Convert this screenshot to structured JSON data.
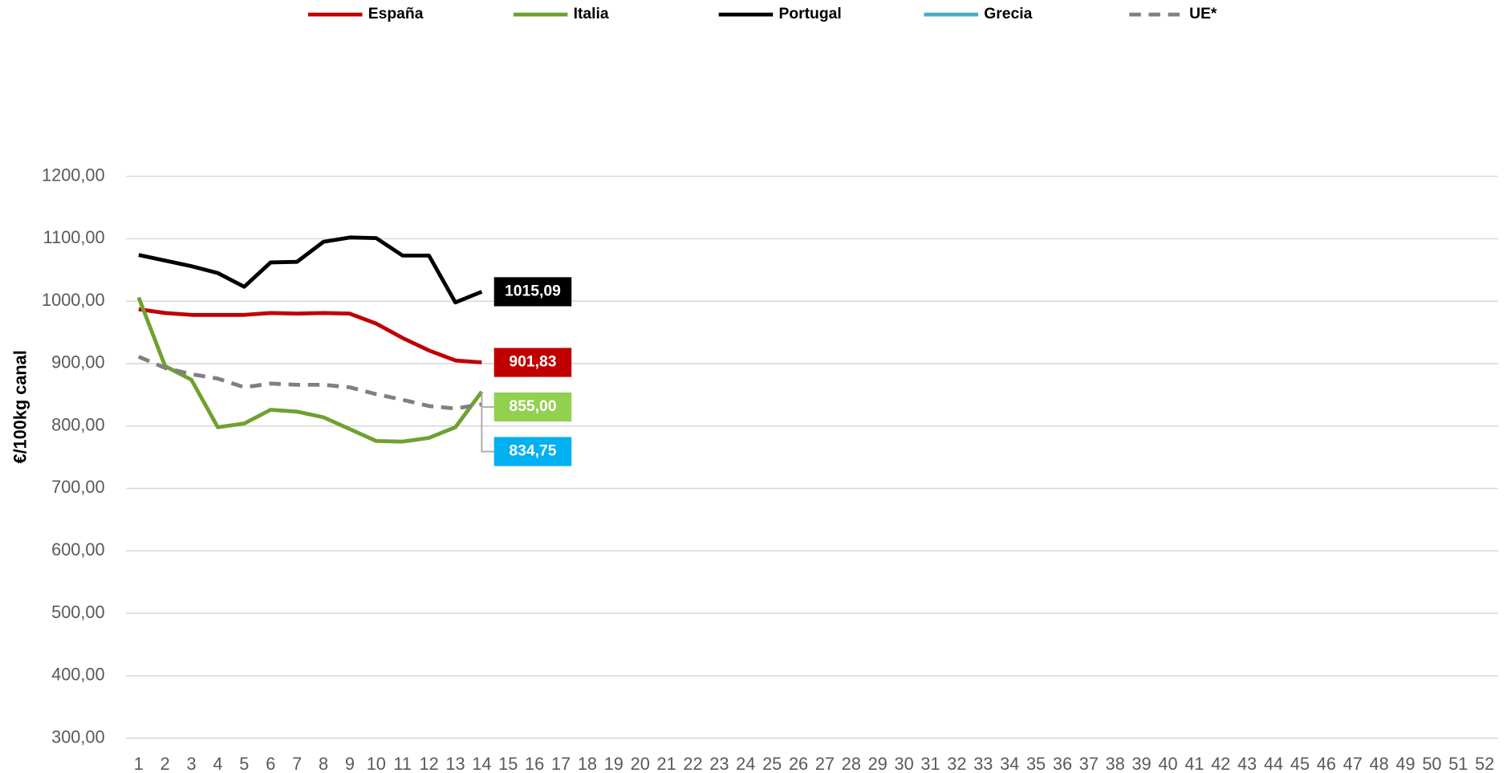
{
  "chart_data": {
    "type": "line",
    "y_label": "€/100kg canal",
    "categories": [
      1,
      2,
      3,
      4,
      5,
      6,
      7,
      8,
      9,
      10,
      11,
      12,
      13,
      14,
      15,
      16,
      17,
      18,
      19,
      20,
      21,
      22,
      23,
      24,
      25,
      26,
      27,
      28,
      29,
      30,
      31,
      32,
      33,
      34,
      35,
      36,
      37,
      38,
      39,
      40,
      41,
      42,
      43,
      44,
      45,
      46,
      47,
      48,
      49,
      50,
      51,
      52
    ],
    "ylim": [
      300,
      1200
    ],
    "yticks": [
      {
        "value": 300,
        "label": "300,00"
      },
      {
        "value": 400,
        "label": "400,00"
      },
      {
        "value": 500,
        "label": "500,00"
      },
      {
        "value": 600,
        "label": "600,00"
      },
      {
        "value": 700,
        "label": "700,00"
      },
      {
        "value": 800,
        "label": "800,00"
      },
      {
        "value": 900,
        "label": "900,00"
      },
      {
        "value": 1000,
        "label": "1000,00"
      },
      {
        "value": 1100,
        "label": "1100,00"
      },
      {
        "value": 1200,
        "label": "1200,00"
      }
    ],
    "grid": true,
    "legend": "top",
    "series": [
      {
        "name": "España",
        "color": "#c00000",
        "label_color": "#c00000",
        "values": [
          987,
          981,
          978,
          978,
          978,
          981,
          980,
          981,
          980,
          964,
          941,
          921,
          905,
          901.83,
          null,
          null,
          null,
          null,
          null,
          null,
          null,
          null,
          null,
          null,
          null,
          null,
          null,
          null,
          null,
          null,
          null,
          null,
          null,
          null,
          null,
          null,
          null,
          null,
          null,
          null,
          null,
          null,
          null,
          null,
          null,
          null,
          null,
          null,
          null,
          null,
          null,
          null
        ],
        "value_labels": [
          null,
          null,
          null,
          null,
          null,
          null,
          null,
          null,
          null,
          null,
          null,
          null,
          null,
          "901,83",
          null,
          null,
          null,
          null,
          null,
          null,
          null,
          null,
          null,
          null,
          null,
          null,
          null,
          null,
          null,
          null,
          null,
          null,
          null,
          null,
          null,
          null,
          null,
          null,
          null,
          null,
          null,
          null,
          null,
          null,
          null,
          null,
          null,
          null,
          null,
          null,
          null,
          null
        ]
      },
      {
        "name": "Italia",
        "color": "#70a030",
        "label_color": "#92d050",
        "values": [
          1006,
          896,
          874,
          798,
          804,
          826,
          823,
          814,
          795,
          776,
          775,
          781,
          798,
          855,
          null,
          null,
          null,
          null,
          null,
          null,
          null,
          null,
          null,
          null,
          null,
          null,
          null,
          null,
          null,
          null,
          null,
          null,
          null,
          null,
          null,
          null,
          null,
          null,
          null,
          null,
          null,
          null,
          null,
          null,
          null,
          null,
          null,
          null,
          null,
          null,
          null,
          null
        ],
        "value_labels": [
          null,
          null,
          null,
          null,
          null,
          null,
          null,
          null,
          null,
          null,
          null,
          null,
          null,
          "855,00",
          null,
          null,
          null,
          null,
          null,
          null,
          null,
          null,
          null,
          null,
          null,
          null,
          null,
          null,
          null,
          null,
          null,
          null,
          null,
          null,
          null,
          null,
          null,
          null,
          null,
          null,
          null,
          null,
          null,
          null,
          null,
          null,
          null,
          null,
          null,
          null,
          null,
          null
        ]
      },
      {
        "name": "Portugal",
        "color": "#000000",
        "label_color": "#000000",
        "values": [
          1074,
          1065,
          1056,
          1045,
          1023,
          1062,
          1063,
          1095,
          1102,
          1101,
          1073,
          1073,
          998,
          1015.09,
          null,
          null,
          null,
          null,
          null,
          null,
          null,
          null,
          null,
          null,
          null,
          null,
          null,
          null,
          null,
          null,
          null,
          null,
          null,
          null,
          null,
          null,
          null,
          null,
          null,
          null,
          null,
          null,
          null,
          null,
          null,
          null,
          null,
          null,
          null,
          null,
          null,
          null
        ],
        "value_labels": [
          null,
          null,
          null,
          null,
          null,
          null,
          null,
          null,
          null,
          null,
          null,
          null,
          null,
          "1015,09",
          null,
          null,
          null,
          null,
          null,
          null,
          null,
          null,
          null,
          null,
          null,
          null,
          null,
          null,
          null,
          null,
          null,
          null,
          null,
          null,
          null,
          null,
          null,
          null,
          null,
          null,
          null,
          null,
          null,
          null,
          null,
          null,
          null,
          null,
          null,
          null,
          null,
          null
        ]
      },
      {
        "name": "Grecia",
        "color": "#4bacc6",
        "values": [
          null,
          null,
          null,
          null,
          null,
          null,
          null,
          null,
          null,
          null,
          null,
          null,
          null,
          null,
          null,
          null,
          null,
          null,
          null,
          null,
          null,
          null,
          null,
          null,
          null,
          null,
          null,
          null,
          null,
          null,
          null,
          null,
          null,
          null,
          null,
          null,
          null,
          null,
          null,
          null,
          null,
          null,
          null,
          null,
          null,
          null,
          null,
          null,
          null,
          null,
          null,
          null
        ]
      },
      {
        "name": "UE*",
        "color": "#808080",
        "dash": true,
        "label_color": "#00b0f0",
        "values": [
          911,
          893,
          883,
          876,
          862,
          868,
          866,
          866,
          862,
          851,
          842,
          832,
          828,
          834.75,
          null,
          null,
          null,
          null,
          null,
          null,
          null,
          null,
          null,
          null,
          null,
          null,
          null,
          null,
          null,
          null,
          null,
          null,
          null,
          null,
          null,
          null,
          null,
          null,
          null,
          null,
          null,
          null,
          null,
          null,
          null,
          null,
          null,
          null,
          null,
          null,
          null,
          null
        ],
        "value_labels": [
          null,
          null,
          null,
          null,
          null,
          null,
          null,
          null,
          null,
          null,
          null,
          null,
          null,
          "834,75",
          null,
          null,
          null,
          null,
          null,
          null,
          null,
          null,
          null,
          null,
          null,
          null,
          null,
          null,
          null,
          null,
          null,
          null,
          null,
          null,
          null,
          null,
          null,
          null,
          null,
          null,
          null,
          null,
          null,
          null,
          null,
          null,
          null,
          null,
          null,
          null,
          null,
          null
        ]
      }
    ]
  }
}
